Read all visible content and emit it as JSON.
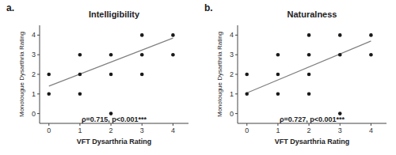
{
  "chart_data": [
    {
      "type": "scatter",
      "title": "Intelligibility",
      "panel_label": "a.",
      "xlabel": "VFT Dysarthria Rating",
      "ylabel": "Monolougue Dysarthria Rating",
      "xlim": [
        -0.3,
        4.5
      ],
      "ylim": [
        -0.5,
        4.5
      ],
      "xticks": [
        0,
        1,
        2,
        3,
        4
      ],
      "yticks": [
        0,
        1,
        2,
        3,
        4
      ],
      "annotations": [
        {
          "text": "ρ=0.715, p<0.001***",
          "x": 1.05,
          "y": -0.05
        }
      ],
      "series": [
        {
          "type": "scatter",
          "color": "#1a1a1a",
          "x": [
            0,
            0,
            1,
            1,
            1,
            2,
            2,
            2,
            3,
            3,
            3,
            4,
            4
          ],
          "values": [
            2,
            1,
            3,
            2,
            1,
            3,
            2,
            0,
            4,
            3,
            2,
            4,
            3
          ]
        },
        {
          "type": "line",
          "color": "#808080",
          "x": [
            0,
            4
          ],
          "values": [
            1.4,
            3.85
          ]
        }
      ]
    },
    {
      "type": "scatter",
      "title": "Naturalness",
      "panel_label": "b.",
      "xlabel": "VFT Dysarthria Rating",
      "ylabel": "Monolougue Dysarthria Rating",
      "xlim": [
        -0.3,
        4.5
      ],
      "ylim": [
        -0.5,
        4.5
      ],
      "xticks": [
        0,
        1,
        2,
        3,
        4
      ],
      "yticks": [
        0,
        1,
        2,
        3,
        4
      ],
      "annotations": [
        {
          "text": "ρ=0.727, p<0.001***",
          "x": 1.05,
          "y": -0.05
        }
      ],
      "series": [
        {
          "type": "scatter",
          "color": "#1a1a1a",
          "x": [
            0,
            0,
            1,
            1,
            1,
            2,
            2,
            2,
            2,
            3,
            3,
            3,
            4,
            4
          ],
          "values": [
            2,
            1,
            3,
            2,
            1,
            4,
            3,
            2,
            1,
            4,
            3,
            0,
            4,
            3
          ]
        },
        {
          "type": "line",
          "color": "#808080",
          "x": [
            0,
            4
          ],
          "values": [
            1.05,
            3.7
          ]
        }
      ]
    }
  ]
}
